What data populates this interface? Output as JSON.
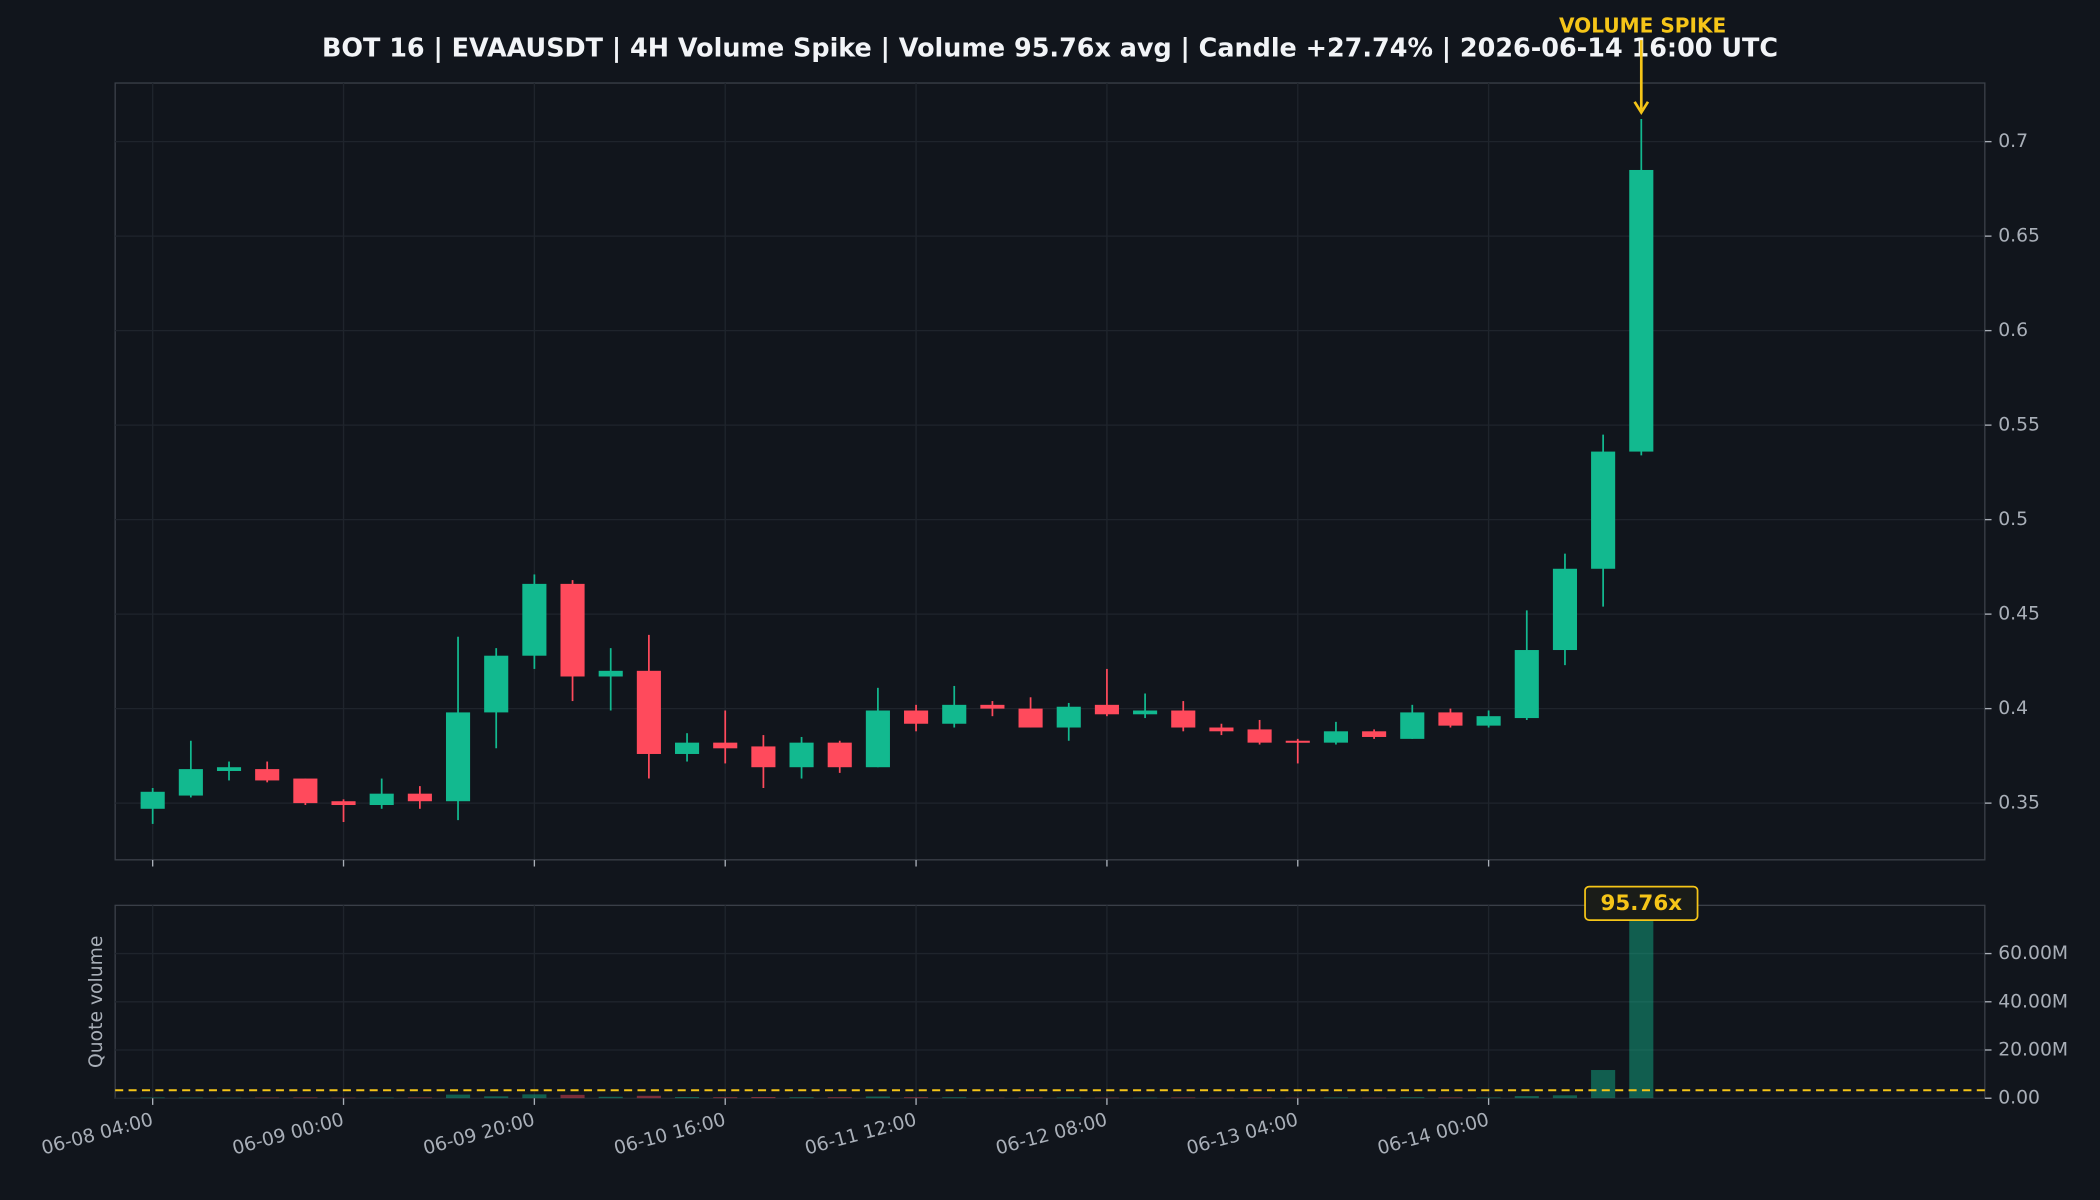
{
  "chart_data": [
    {
      "type": "candlestick",
      "title": "BOT 16 | EVAAUSDT | 4H Volume Spike | Volume 95.76x avg | Candle +27.74% | 2026-06-14 16:00 UTC",
      "annotation": "VOLUME SPIKE",
      "categories": [
        "06-08 04:00",
        null,
        null,
        null,
        null,
        "06-09 00:00",
        null,
        null,
        null,
        null,
        "06-09 20:00",
        null,
        null,
        null,
        null,
        "06-10 16:00",
        null,
        null,
        null,
        null,
        "06-11 12:00",
        null,
        null,
        null,
        null,
        "06-12 08:00",
        null,
        null,
        null,
        null,
        "06-13 04:00",
        null,
        null,
        null,
        null,
        "06-14 00:00",
        null,
        null,
        null,
        null
      ],
      "open": [
        0.347,
        0.354,
        0.367,
        0.368,
        0.363,
        0.351,
        0.349,
        0.355,
        0.351,
        0.398,
        0.428,
        0.466,
        0.417,
        0.42,
        0.376,
        0.382,
        0.38,
        0.369,
        0.382,
        0.369,
        0.399,
        0.392,
        0.402,
        0.4,
        0.39,
        0.402,
        0.397,
        0.399,
        0.39,
        0.389,
        0.383,
        0.382,
        0.388,
        0.384,
        0.398,
        0.391,
        0.395,
        0.431,
        0.474,
        0.536
      ],
      "high": [
        0.358,
        0.383,
        0.372,
        0.372,
        0.363,
        0.352,
        0.363,
        0.359,
        0.438,
        0.432,
        0.471,
        0.468,
        0.432,
        0.439,
        0.387,
        0.399,
        0.386,
        0.385,
        0.383,
        0.411,
        0.402,
        0.412,
        0.404,
        0.406,
        0.403,
        0.421,
        0.408,
        0.404,
        0.392,
        0.394,
        0.384,
        0.393,
        0.389,
        0.402,
        0.4,
        0.399,
        0.452,
        0.482,
        0.545,
        0.712
      ],
      "low": [
        0.339,
        0.353,
        0.362,
        0.361,
        0.349,
        0.34,
        0.347,
        0.347,
        0.341,
        0.379,
        0.421,
        0.404,
        0.399,
        0.363,
        0.372,
        0.371,
        0.358,
        0.363,
        0.366,
        0.369,
        0.388,
        0.39,
        0.396,
        0.39,
        0.383,
        0.396,
        0.395,
        0.388,
        0.386,
        0.381,
        0.371,
        0.381,
        0.384,
        0.384,
        0.39,
        0.39,
        0.394,
        0.423,
        0.454,
        0.534
      ],
      "close": [
        0.356,
        0.368,
        0.369,
        0.362,
        0.35,
        0.349,
        0.355,
        0.351,
        0.398,
        0.428,
        0.466,
        0.417,
        0.42,
        0.376,
        0.382,
        0.379,
        0.369,
        0.382,
        0.369,
        0.399,
        0.392,
        0.402,
        0.4,
        0.39,
        0.401,
        0.397,
        0.399,
        0.39,
        0.388,
        0.382,
        0.382,
        0.388,
        0.385,
        0.398,
        0.391,
        0.396,
        0.431,
        0.474,
        0.536,
        0.685
      ],
      "up_color": "#12b98f",
      "down_color": "#ff4a5c",
      "ylim": [
        0.32,
        0.731
      ],
      "yticks": [
        0.35,
        0.4,
        0.45,
        0.5,
        0.55,
        0.6,
        0.65,
        0.7
      ],
      "grid": true
    },
    {
      "type": "bar",
      "ylabel": "Quote volume",
      "annotation": "95.76x",
      "values": [
        300000,
        250000,
        200000,
        250000,
        300000,
        200000,
        250000,
        300000,
        1500000,
        800000,
        1600000,
        1400000,
        600000,
        1000000,
        500000,
        400000,
        500000,
        400000,
        400000,
        700000,
        400000,
        400000,
        200000,
        300000,
        300000,
        200000,
        200000,
        300000,
        200000,
        300000,
        200000,
        300000,
        200000,
        400000,
        300000,
        300000,
        900000,
        1200000,
        11700000,
        80000000
      ],
      "avg_line": 3300000,
      "avg_color": "#f5c518",
      "ylim": [
        0,
        80000000
      ],
      "yticks": [
        {
          "value": 0,
          "label": "0.00"
        },
        {
          "value": 20000000,
          "label": "20.00M"
        },
        {
          "value": 40000000,
          "label": "40.00M"
        },
        {
          "value": 60000000,
          "label": "60.00M"
        }
      ],
      "grid": true
    }
  ]
}
